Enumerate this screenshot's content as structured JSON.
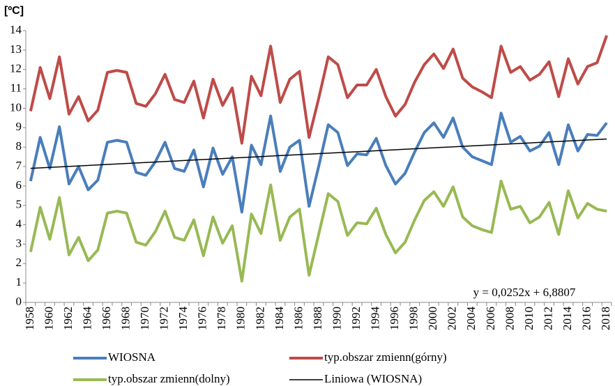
{
  "chart_data": {
    "type": "line",
    "y_axis_label": "[ºC]",
    "categories": [
      "1958",
      null,
      "1960",
      null,
      "1962",
      null,
      "1964",
      null,
      "1966",
      null,
      "1968",
      null,
      "1970",
      null,
      "1972",
      null,
      "1974",
      null,
      "1976",
      null,
      "1978",
      null,
      "1980",
      null,
      "1982",
      null,
      "1984",
      null,
      "1986",
      null,
      "1988",
      null,
      "1990",
      null,
      "1992",
      null,
      "1994",
      null,
      "1996",
      null,
      "1998",
      null,
      "2000",
      null,
      "2002",
      null,
      "2004",
      null,
      "2006",
      null,
      "2008",
      null,
      "2010",
      null,
      "2012",
      null,
      "2014",
      null,
      "2016",
      null,
      "2018"
    ],
    "series": [
      {
        "name": "WIOSNA",
        "color": "#4a7ebb",
        "values": [
          6.25,
          8.5,
          6.9,
          9.05,
          6.1,
          7.0,
          5.8,
          6.3,
          8.25,
          8.35,
          8.25,
          6.7,
          6.55,
          7.25,
          8.25,
          6.9,
          6.75,
          7.85,
          5.95,
          7.95,
          6.6,
          7.5,
          4.65,
          8.1,
          7.1,
          9.6,
          6.75,
          8.0,
          8.35,
          4.95,
          7.0,
          9.15,
          8.75,
          7.05,
          7.65,
          7.6,
          8.45,
          7.05,
          6.1,
          6.65,
          7.75,
          8.75,
          9.25,
          8.5,
          9.5,
          8.0,
          7.5,
          7.3,
          7.1,
          9.75,
          8.25,
          8.55,
          7.8,
          8.05,
          8.75,
          7.1,
          9.15,
          7.8,
          8.65,
          8.6,
          9.25
        ]
      },
      {
        "name": "typ.obszar zmienn(górny)",
        "color": "#be4b48",
        "values": [
          9.85,
          12.1,
          10.5,
          12.65,
          9.7,
          10.6,
          9.35,
          9.9,
          11.85,
          11.95,
          11.85,
          10.25,
          10.1,
          10.75,
          11.75,
          10.45,
          10.3,
          11.4,
          9.5,
          11.5,
          10.15,
          11.05,
          8.2,
          11.65,
          10.65,
          13.2,
          10.3,
          11.5,
          11.9,
          8.5,
          10.5,
          12.65,
          12.25,
          10.55,
          11.2,
          11.2,
          12.0,
          10.6,
          9.6,
          10.2,
          11.35,
          12.25,
          12.8,
          12.05,
          13.05,
          11.55,
          11.1,
          10.85,
          10.55,
          13.2,
          11.85,
          12.15,
          11.45,
          11.75,
          12.4,
          10.6,
          12.55,
          11.25,
          12.15,
          12.35,
          13.75
        ]
      },
      {
        "name": "typ.obszar zmienn(dolny)",
        "color": "#98b954",
        "values": [
          2.6,
          4.9,
          3.25,
          5.4,
          2.45,
          3.35,
          2.15,
          2.7,
          4.6,
          4.7,
          4.6,
          3.1,
          2.95,
          3.65,
          4.7,
          3.35,
          3.2,
          4.25,
          2.4,
          4.4,
          3.05,
          3.95,
          1.1,
          4.55,
          3.55,
          6.05,
          3.2,
          4.4,
          4.8,
          1.4,
          3.5,
          5.6,
          5.2,
          3.45,
          4.1,
          4.05,
          4.85,
          3.5,
          2.55,
          3.1,
          4.25,
          5.25,
          5.7,
          4.95,
          5.95,
          4.4,
          3.95,
          3.75,
          3.6,
          6.25,
          4.8,
          4.95,
          4.1,
          4.4,
          5.15,
          3.5,
          5.75,
          4.35,
          5.1,
          4.8,
          4.7
        ]
      }
    ],
    "trendline": {
      "name": "Liniowa (WIOSNA)",
      "color": "#000000",
      "slope": 0.0252,
      "intercept": 6.8807,
      "label": "y = 0,0252x + 6,8807"
    },
    "ylim": [
      0,
      14
    ],
    "yticks": [
      0,
      1,
      2,
      3,
      4,
      5,
      6,
      7,
      8,
      9,
      10,
      11,
      12,
      13,
      14
    ],
    "grid": false
  }
}
